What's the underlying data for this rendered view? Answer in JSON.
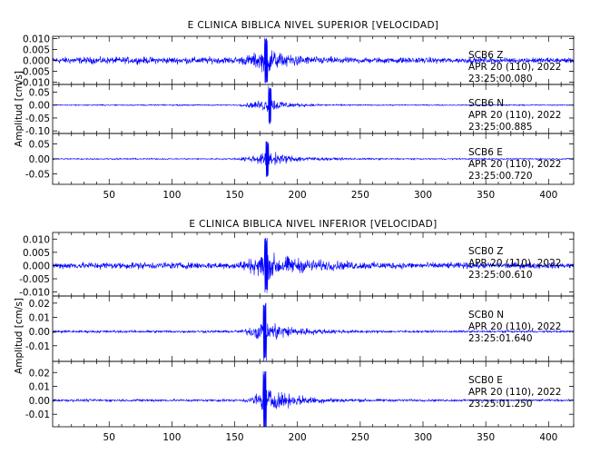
{
  "chart_data": [
    {
      "type": "line",
      "title": "E CLINICA BIBLICA NIVEL SUPERIOR [VELOCIDAD]",
      "ylabel": "Amplitud [cm/s]",
      "xlim": [
        5,
        420
      ],
      "x_ticks": [
        "50",
        "100",
        "150",
        "200",
        "250",
        "300",
        "350",
        "400"
      ],
      "panels": [
        {
          "station": "SCB6   Z",
          "date": "APR 20 (110), 2022",
          "time": "23:25:00.080",
          "ylim": [
            -0.011,
            0.011
          ],
          "y_ticks": [
            0.01,
            0.005,
            0.0,
            -0.005,
            -0.01
          ],
          "y_tick_labels": [
            "0.010",
            "0.005",
            "0.000",
            "-0.005",
            "-0.010"
          ],
          "signal": {
            "pre_noise": 0.0022,
            "onset": 148,
            "peak_time": 175,
            "peak_amp": 0.0105,
            "decay": 20,
            "tail_noise": 0.0018
          }
        },
        {
          "station": "SCB6   N",
          "date": "APR 20 (110), 2022",
          "time": "23:25:00.885",
          "ylim": [
            -0.11,
            0.08
          ],
          "y_ticks": [
            0.05,
            0.0,
            -0.05,
            -0.1
          ],
          "y_tick_labels": [
            "0.05",
            "0.00",
            "-0.05",
            "-0.10"
          ],
          "signal": {
            "pre_noise": 0.003,
            "onset": 148,
            "peak_time": 178,
            "peak_amp": 0.075,
            "decay": 14,
            "tail_noise": 0.003
          }
        },
        {
          "station": "SCB6   E",
          "date": "APR 20 (110), 2022",
          "time": "23:25:00.720",
          "ylim": [
            -0.085,
            0.085
          ],
          "y_ticks": [
            0.05,
            0.0,
            -0.05
          ],
          "y_tick_labels": [
            "0.05",
            "0.00",
            "-0.05"
          ],
          "signal": {
            "pre_noise": 0.003,
            "onset": 145,
            "peak_time": 176,
            "peak_amp": 0.06,
            "decay": 22,
            "tail_noise": 0.003
          }
        }
      ]
    },
    {
      "type": "line",
      "title": "E CLINICA BIBLICA NIVEL INFERIOR [VELOCIDAD]",
      "ylabel": "Amplitud [cm/s]",
      "xlim": [
        5,
        420
      ],
      "x_ticks": [
        "50",
        "100",
        "150",
        "200",
        "250",
        "300",
        "350",
        "400"
      ],
      "panels": [
        {
          "station": "SCB0   Z",
          "date": "APR 20 (110), 2022",
          "time": "23:25:00.610",
          "ylim": [
            -0.0115,
            0.0125
          ],
          "y_ticks": [
            0.01,
            0.005,
            0.0,
            -0.005,
            -0.01
          ],
          "y_tick_labels": [
            "0.010",
            "0.005",
            "0.000",
            "-0.005",
            "-0.010"
          ],
          "signal": {
            "pre_noise": 0.0018,
            "onset": 145,
            "peak_time": 175,
            "peak_amp": 0.0105,
            "decay": 30,
            "tail_noise": 0.0016
          }
        },
        {
          "station": "SCB0   N",
          "date": "APR 20 (110), 2022",
          "time": "23:25:01.640",
          "ylim": [
            -0.021,
            0.025
          ],
          "y_ticks": [
            0.02,
            0.01,
            0.0,
            -0.01
          ],
          "y_tick_labels": [
            "0.02",
            "0.01",
            "0.00",
            "-0.01"
          ],
          "signal": {
            "pre_noise": 0.0012,
            "onset": 150,
            "peak_time": 174,
            "peak_amp": 0.021,
            "decay": 22,
            "tail_noise": 0.001
          }
        },
        {
          "station": "SCB0   E",
          "date": "APR 20 (110), 2022",
          "time": "23:25:01.250",
          "ylim": [
            -0.019,
            0.028
          ],
          "y_ticks": [
            0.02,
            0.01,
            0.0,
            -0.01
          ],
          "y_tick_labels": [
            "0.02",
            "0.01",
            "0.00",
            "-0.01"
          ],
          "signal": {
            "pre_noise": 0.0012,
            "onset": 155,
            "peak_time": 174,
            "peak_amp": 0.022,
            "decay": 25,
            "tail_noise": 0.001
          }
        }
      ]
    }
  ],
  "colors": {
    "trace": "#0000ff",
    "axes": "#000000",
    "background": "#ffffff"
  }
}
